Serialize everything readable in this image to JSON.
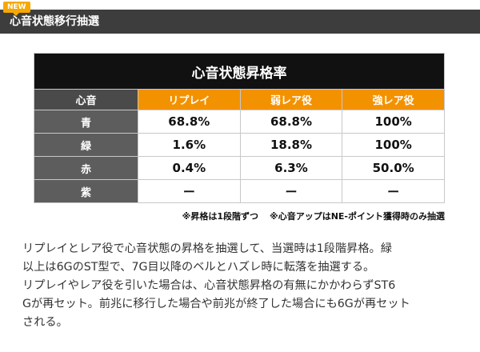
{
  "header": {
    "badge": "NEW",
    "title": "心音状態移行抽選"
  },
  "table": {
    "caption": "心音状態昇格率",
    "columns": [
      "心音",
      "リプレイ",
      "弱レア役",
      "強レア役"
    ],
    "rows": [
      {
        "label": "青",
        "values": [
          "68.8%",
          "68.8%",
          "100%"
        ]
      },
      {
        "label": "緑",
        "values": [
          "1.6%",
          "18.8%",
          "100%"
        ]
      },
      {
        "label": "赤",
        "values": [
          "0.4%",
          "6.3%",
          "50.0%"
        ]
      },
      {
        "label": "紫",
        "values": [
          "ー",
          "ー",
          "ー"
        ]
      }
    ]
  },
  "notes": [
    "※昇格は1段階ずつ",
    "※心音アップはNE-ポイント獲得時のみ抽選"
  ],
  "body_lines": [
    "リプレイとレア役で心音状態の昇格を抽選して、当選時は1段階昇格。緑",
    "以上は6GのST型で、7G目以降のベルとハズレ時に転落を抽選する。",
    "リプレイやレア役を引いた場合は、心音状態昇格の有無にかかわらずST6",
    "Gが再セット。前兆に移行した場合や前兆が終了した場合にも6Gが再セット",
    "される。"
  ]
}
